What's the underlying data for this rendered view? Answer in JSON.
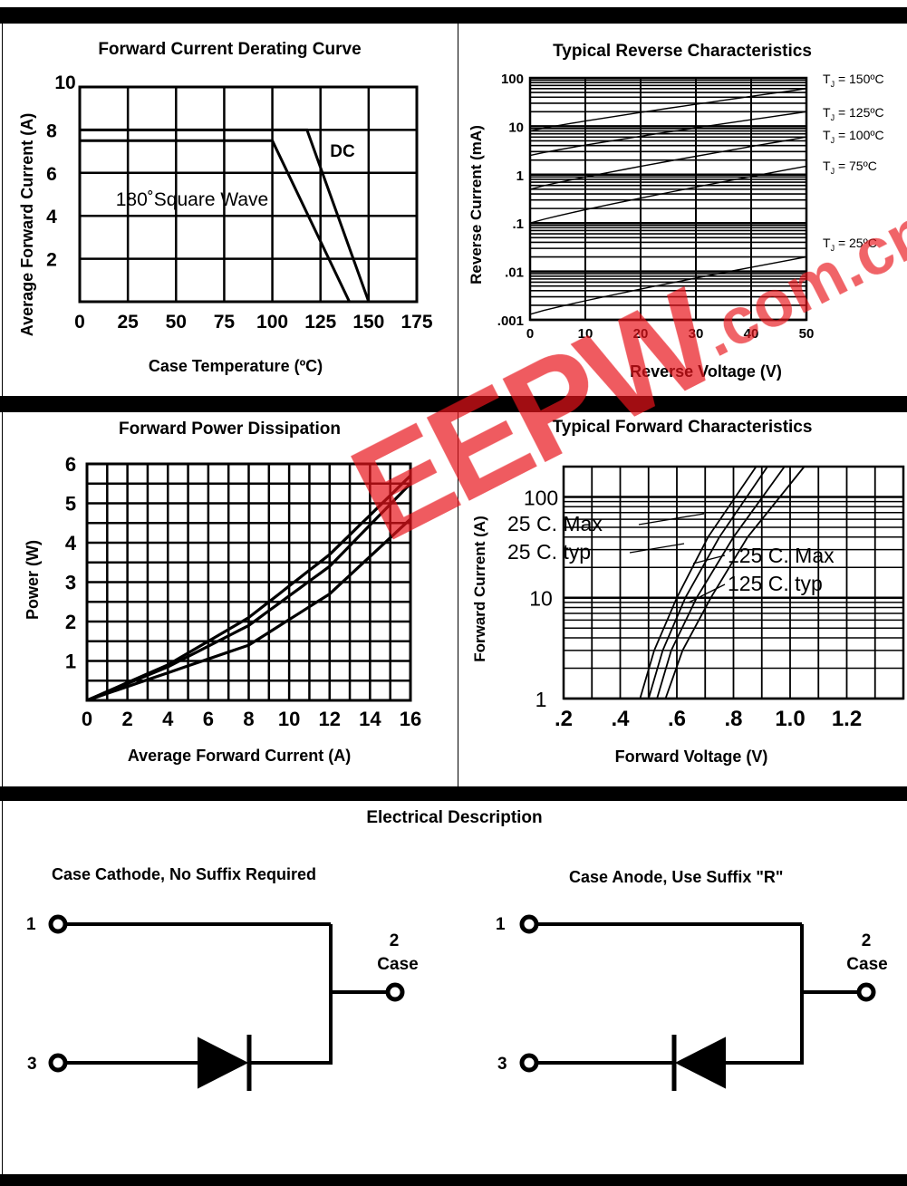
{
  "charts": {
    "derating": {
      "title": "Forward Current Derating Curve",
      "xlabel": "Case Temperature (ºC)",
      "ylabel": "Average Forward Current (A)",
      "xticks": [
        "0",
        "25",
        "50",
        "75",
        "100",
        "125",
        "150",
        "175"
      ],
      "yticks": [
        "2",
        "4",
        "6",
        "8",
        "10"
      ],
      "label_dc": "DC",
      "label_sq": "180˚Square Wave"
    },
    "reverse": {
      "title": "Typical Reverse Characteristics",
      "xlabel": "Reverse Voltage (V)",
      "ylabel": "Reverse Current (mA)",
      "xticks": [
        "0",
        "10",
        "20",
        "30",
        "40",
        "50"
      ],
      "yticks": [
        "100",
        "10",
        "1",
        ".1",
        ".01",
        ".001"
      ],
      "tj_labels": [
        "T",
        "T",
        "T",
        "T",
        "T"
      ],
      "tj_temps": [
        " = 150ºC",
        " = 125ºC",
        " = 100ºC",
        " = 75ºC",
        " = 25ºC"
      ],
      "tj_sub": "J"
    },
    "power": {
      "title": "Forward Power Dissipation",
      "xlabel": "Average Forward Current (A)",
      "ylabel": "Power (W)",
      "xticks": [
        "0",
        "2",
        "4",
        "6",
        "8",
        "10",
        "12",
        "14",
        "16"
      ],
      "yticks": [
        "1",
        "2",
        "3",
        "4",
        "5",
        "6"
      ]
    },
    "forward": {
      "title": "Typical Forward Characteristics",
      "xlabel": "Forward Voltage (V)",
      "ylabel": "Forward Current (A)",
      "xticks": [
        ".2",
        ".4",
        ".6",
        ".8",
        "1.0",
        "1.2"
      ],
      "yticks": [
        "100",
        "10",
        "1"
      ],
      "labels": [
        "25 C. Max",
        "25 C. typ",
        "125 C. Max",
        "125 C. typ"
      ]
    }
  },
  "chart_data": [
    {
      "type": "line",
      "title": "Forward Current Derating Curve",
      "xlabel": "Case Temperature (ºC)",
      "ylabel": "Average Forward Current (A)",
      "xlim": [
        0,
        175
      ],
      "ylim": [
        0,
        10
      ],
      "grid": true,
      "series": [
        {
          "name": "DC",
          "x": [
            0,
            118,
            150
          ],
          "y": [
            8,
            8,
            0
          ]
        },
        {
          "name": "180˚Square Wave",
          "x": [
            0,
            100,
            140
          ],
          "y": [
            7.5,
            7.5,
            0
          ]
        }
      ]
    },
    {
      "type": "line",
      "title": "Typical Reverse Characteristics",
      "xlabel": "Reverse Voltage (V)",
      "ylabel": "Reverse Current (mA)",
      "xlim": [
        0,
        50
      ],
      "ylim": [
        0.001,
        100
      ],
      "yscale": "log",
      "grid": true,
      "series": [
        {
          "name": "TJ = 150ºC",
          "x": [
            0,
            50
          ],
          "y": [
            8,
            60
          ]
        },
        {
          "name": "TJ = 125ºC",
          "x": [
            0,
            50
          ],
          "y": [
            2.5,
            20
          ]
        },
        {
          "name": "TJ = 100ºC",
          "x": [
            0,
            50
          ],
          "y": [
            0.5,
            6
          ]
        },
        {
          "name": "TJ = 75ºC",
          "x": [
            0,
            50
          ],
          "y": [
            0.1,
            1.5
          ]
        },
        {
          "name": "TJ = 25ºC",
          "x": [
            0,
            50
          ],
          "y": [
            0.0013,
            0.02
          ]
        }
      ]
    },
    {
      "type": "line",
      "title": "Forward Power Dissipation",
      "xlabel": "Average Forward Current (A)",
      "ylabel": "Power (W)",
      "xlim": [
        0,
        16
      ],
      "ylim": [
        0,
        6
      ],
      "grid": true,
      "series": [
        {
          "x": [
            0,
            4,
            8,
            12,
            16
          ],
          "y": [
            0,
            0.9,
            2.1,
            3.7,
            5.7
          ]
        },
        {
          "x": [
            0,
            4,
            8,
            12,
            16
          ],
          "y": [
            0,
            0.85,
            1.9,
            3.4,
            5.5
          ]
        },
        {
          "x": [
            0,
            4,
            8,
            12,
            16
          ],
          "y": [
            0,
            0.7,
            1.4,
            2.7,
            4.6
          ]
        }
      ]
    },
    {
      "type": "line",
      "title": "Typical Forward Characteristics",
      "xlabel": "Forward Voltage (V)",
      "ylabel": "Forward Current (A)",
      "xlim": [
        0.2,
        1.4
      ],
      "ylim": [
        1,
        200
      ],
      "yscale": "log",
      "grid": true,
      "series": [
        {
          "name": "25 C. Max",
          "x": [
            0.56,
            0.62,
            0.72,
            0.85,
            1.05
          ],
          "y": [
            1,
            3,
            10,
            40,
            200
          ]
        },
        {
          "name": "25 C. typ",
          "x": [
            0.53,
            0.58,
            0.67,
            0.8,
            0.98
          ],
          "y": [
            1,
            3,
            10,
            40,
            200
          ]
        },
        {
          "name": "125 C. Max",
          "x": [
            0.5,
            0.55,
            0.63,
            0.75,
            0.92
          ],
          "y": [
            1,
            3,
            10,
            40,
            200
          ]
        },
        {
          "name": "125 C. typ",
          "x": [
            0.47,
            0.52,
            0.6,
            0.71,
            0.88
          ],
          "y": [
            1,
            3,
            10,
            40,
            200
          ]
        }
      ]
    }
  ],
  "electrical": {
    "title": "Electrical Description",
    "left_caption": "Case Cathode, No Suffix Required",
    "right_caption": "Case Anode, Use Suffix \"R\"",
    "pin1": "1",
    "pin2": "2",
    "pin3": "3",
    "case_label": "Case"
  },
  "watermark": {
    "main": "EEPW",
    "domain": ".com.cn",
    "color": "#e8141b"
  }
}
